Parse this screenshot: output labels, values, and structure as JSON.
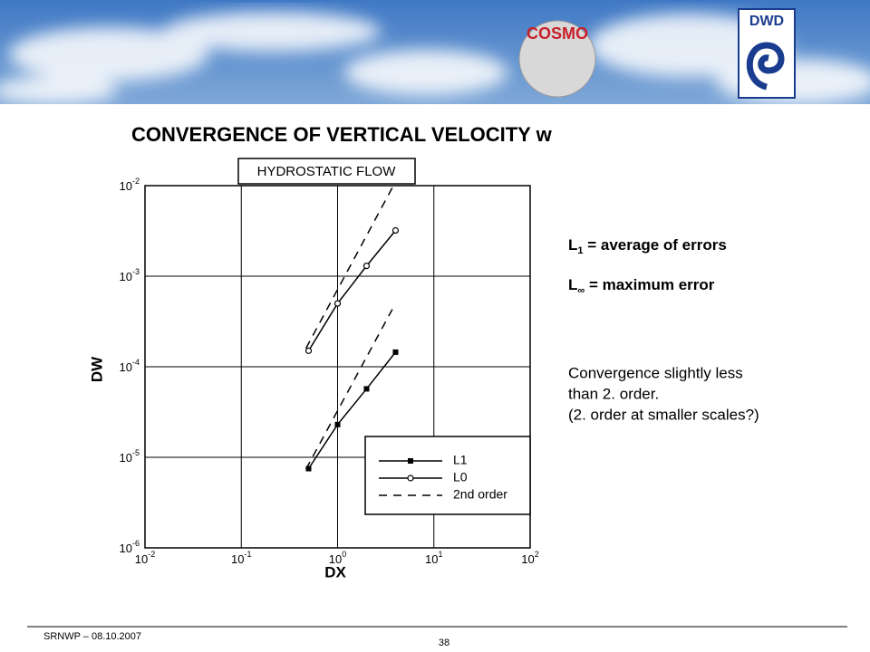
{
  "header": {
    "logo_left": "COSMO",
    "logo_right": "DWD"
  },
  "slide_title": "CONVERGENCE  OF  VERTICAL VELOCITY  w",
  "notes": [
    {
      "symbol": "L",
      "subscript": "1",
      "text": " = average of errors"
    },
    {
      "symbol": "L",
      "subscript": "∞",
      "text": " = maximum error"
    }
  ],
  "comment": [
    "Convergence slightly less",
    "than 2. order.",
    "(2. order at smaller scales?)"
  ],
  "footer": {
    "left": "SRNWP  – 08.10.2007",
    "page": "38"
  },
  "chart_data": {
    "type": "line",
    "title": "HYDROSTATIC FLOW",
    "x_label": "DX",
    "y_label": "DW",
    "log_x": true,
    "log_y": true,
    "grid": true,
    "xlim": [
      0.01,
      100
    ],
    "ylim": [
      1e-06,
      0.01
    ],
    "xticks": [
      {
        "value": 0.01,
        "label": "10-2"
      },
      {
        "value": 0.1,
        "label": "10-1"
      },
      {
        "value": 1,
        "label": "100"
      },
      {
        "value": 10,
        "label": "101"
      },
      {
        "value": 100,
        "label": "102"
      }
    ],
    "yticks": [
      {
        "value": 1e-06,
        "label": "10-6"
      },
      {
        "value": 1e-05,
        "label": "10-5"
      },
      {
        "value": 0.0001,
        "label": "10-4"
      },
      {
        "value": 0.001,
        "label": "10-3"
      },
      {
        "value": 0.01,
        "label": "10-2"
      }
    ],
    "legend": "lower right",
    "series": [
      {
        "name": "L1",
        "color": "#000000",
        "marker": "square",
        "dashed": false,
        "x": [
          0.5,
          1,
          2,
          4
        ],
        "values": [
          7.5e-06,
          2.3e-05,
          5.7e-05,
          0.000145
        ]
      },
      {
        "name": "L0",
        "color": "#000000",
        "marker": "circle",
        "dashed": false,
        "x": [
          0.5,
          1,
          2,
          4
        ],
        "values": [
          0.00015,
          0.0005,
          0.0013,
          0.0032
        ]
      },
      {
        "name": "2nd order",
        "color": "#000000",
        "marker": "none",
        "dashed": true,
        "x": [
          0.47,
          3.8,
          null,
          0.47,
          3.7
        ],
        "values": [
          0.00016,
          0.01,
          null,
          7.4e-06,
          0.00043
        ]
      }
    ]
  }
}
